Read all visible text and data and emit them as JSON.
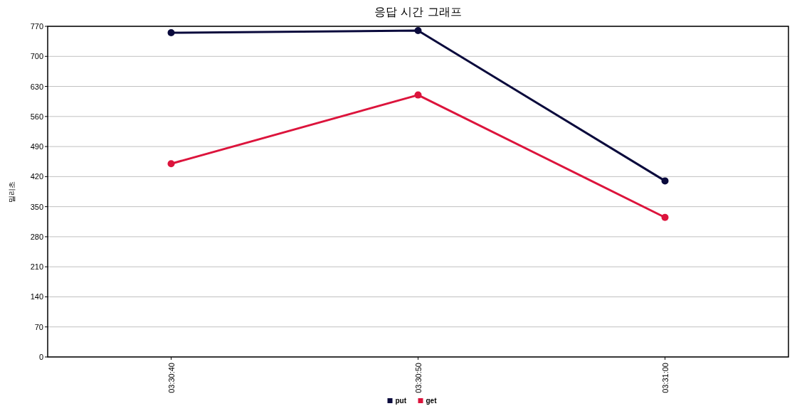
{
  "chart_data": {
    "type": "line",
    "title": "응답 시간 그래프",
    "ylabel": "밀리초",
    "categories": [
      "03:30:40",
      "03:30:50",
      "03:31:00"
    ],
    "series": [
      {
        "name": "put",
        "color": "#0a0a3c",
        "values": [
          755,
          760,
          410
        ]
      },
      {
        "name": "get",
        "color": "#dc143c",
        "values": [
          450,
          610,
          325
        ]
      }
    ],
    "ylim": [
      0,
      770
    ],
    "yticks": [
      0,
      70,
      140,
      210,
      280,
      350,
      420,
      490,
      560,
      630,
      700,
      770
    ],
    "grid": "y",
    "legend": "bottom",
    "marker": "circle",
    "line_style": "solid"
  }
}
